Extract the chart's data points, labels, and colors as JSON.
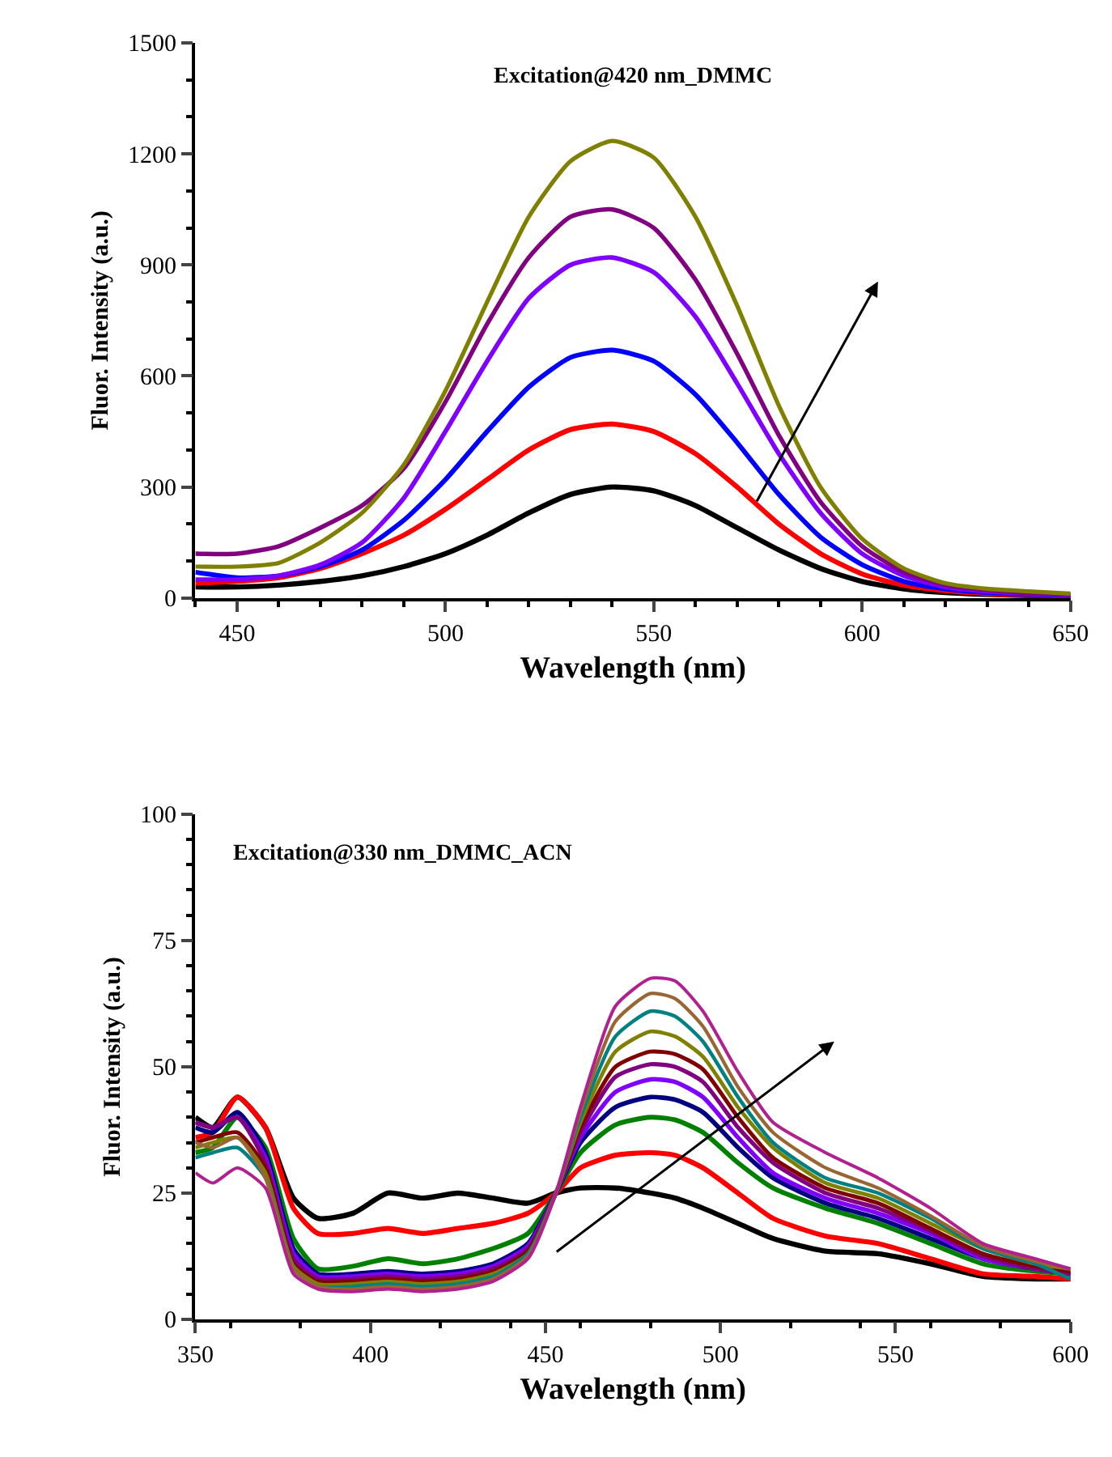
{
  "chart_data": [
    {
      "type": "line",
      "title": "Excitation@420 nm_DMMC",
      "xlabel": "Wavelength (nm)",
      "ylabel": "Fluor. Intensity (a.u.)",
      "xlim": [
        440,
        650
      ],
      "xticks": [
        450,
        500,
        550,
        600,
        650
      ],
      "ylim": [
        0,
        1500
      ],
      "yticks": [
        0,
        300,
        600,
        900,
        1200,
        1500
      ],
      "line_style": "solid",
      "marker": "none",
      "x": [
        440,
        450,
        460,
        470,
        480,
        490,
        500,
        510,
        520,
        530,
        540,
        550,
        560,
        570,
        580,
        590,
        600,
        610,
        620,
        630,
        640,
        650
      ],
      "series": [
        {
          "color": "#000000",
          "values": [
            30,
            30,
            35,
            45,
            60,
            85,
            120,
            170,
            230,
            280,
            300,
            290,
            250,
            190,
            130,
            80,
            45,
            25,
            15,
            10,
            7,
            5
          ]
        },
        {
          "color": "#ff0000",
          "values": [
            40,
            45,
            55,
            80,
            120,
            170,
            240,
            320,
            400,
            455,
            470,
            450,
            390,
            300,
            200,
            120,
            65,
            35,
            20,
            12,
            8,
            6
          ]
        },
        {
          "color": "#0000ff",
          "values": [
            70,
            55,
            60,
            85,
            130,
            210,
            320,
            450,
            570,
            650,
            670,
            640,
            550,
            420,
            280,
            165,
            90,
            45,
            25,
            15,
            10,
            7
          ]
        },
        {
          "color": "#8000ff",
          "values": [
            50,
            50,
            60,
            90,
            150,
            270,
            450,
            640,
            810,
            900,
            920,
            880,
            760,
            580,
            390,
            230,
            120,
            60,
            30,
            18,
            12,
            8
          ]
        },
        {
          "color": "#800080",
          "values": [
            120,
            120,
            140,
            190,
            250,
            350,
            530,
            740,
            920,
            1030,
            1050,
            1000,
            860,
            660,
            440,
            260,
            140,
            70,
            35,
            22,
            14,
            10
          ]
        },
        {
          "color": "#808000",
          "values": [
            85,
            85,
            95,
            150,
            230,
            360,
            560,
            800,
            1030,
            1180,
            1235,
            1190,
            1030,
            790,
            520,
            300,
            160,
            80,
            40,
            25,
            18,
            12
          ]
        }
      ]
    },
    {
      "type": "line",
      "title": "Excitation@330 nm_DMMC_ACN",
      "xlabel": "Wavelength (nm)",
      "ylabel": "Fluor. Intensity (a.u.)",
      "xlim": [
        350,
        600
      ],
      "xticks": [
        350,
        400,
        450,
        500,
        550,
        600
      ],
      "ylim": [
        0,
        100
      ],
      "yticks": [
        0,
        25,
        50,
        75,
        100
      ],
      "line_style": "solid",
      "marker": "none",
      "x": [
        350,
        355,
        362,
        370,
        378,
        385,
        395,
        405,
        415,
        425,
        435,
        445,
        453,
        460,
        470,
        480,
        487,
        495,
        505,
        515,
        530,
        545,
        560,
        575,
        590,
        600
      ],
      "series": [
        {
          "color": "#000000",
          "values": [
            40,
            38,
            44,
            38,
            24,
            20,
            21,
            25,
            24,
            25,
            24,
            23,
            25,
            26,
            26,
            25,
            24,
            22,
            19,
            16,
            13.5,
            13,
            11,
            8.5,
            8,
            8
          ]
        },
        {
          "color": "#ff0000",
          "values": [
            36,
            37,
            44,
            38,
            22,
            17,
            17,
            18,
            17,
            18,
            19,
            21,
            25,
            30,
            32.5,
            33,
            32.5,
            30,
            25,
            20,
            16.5,
            15,
            12,
            9,
            8.5,
            8
          ]
        },
        {
          "color": "#008000",
          "values": [
            33,
            34,
            40,
            34,
            16,
            10,
            10.5,
            12,
            11,
            12,
            14,
            17,
            25,
            33,
            38.5,
            40,
            39.5,
            37,
            31,
            26,
            22,
            19,
            15,
            11,
            9.5,
            9
          ]
        },
        {
          "color": "#000080",
          "values": [
            38,
            37,
            41,
            33,
            14,
            9,
            9,
            9.5,
            9,
            9.5,
            11,
            15,
            25,
            35,
            42,
            44,
            43.5,
            41,
            34,
            28,
            23,
            20,
            16,
            12,
            10,
            9
          ]
        },
        {
          "color": "#8000ff",
          "values": [
            39,
            38,
            40,
            32,
            13,
            8.5,
            8.5,
            9,
            8.5,
            9,
            10.5,
            14.5,
            25,
            36,
            45,
            47.5,
            47,
            44,
            36,
            29,
            24,
            21,
            17,
            12,
            10,
            9
          ]
        },
        {
          "color": "#800080",
          "values": [
            39,
            38,
            40,
            31,
            12,
            8,
            8,
            8.5,
            8,
            8.5,
            10,
            14,
            25,
            37,
            48,
            50.5,
            50,
            47,
            38,
            31,
            25,
            22,
            17.5,
            12.5,
            10,
            9
          ]
        },
        {
          "color": "#800000",
          "values": [
            35,
            36,
            37,
            30,
            11,
            7.5,
            7.5,
            8,
            7.5,
            8,
            9.5,
            13.5,
            25,
            38,
            50,
            53,
            52.5,
            49.5,
            40,
            32,
            26,
            23,
            18,
            13,
            10.5,
            9.5
          ]
        },
        {
          "color": "#808000",
          "values": [
            34,
            35,
            36,
            29,
            10.5,
            7,
            7,
            7.5,
            7,
            7.5,
            9,
            13,
            25,
            39,
            53,
            57,
            56,
            52,
            42,
            34,
            27,
            24,
            19,
            14,
            11,
            10
          ]
        },
        {
          "color": "#008080",
          "values": [
            32,
            33,
            34,
            28,
            10,
            6.5,
            6.5,
            7,
            6.5,
            7,
            8.5,
            13,
            25,
            40,
            56,
            61,
            60,
            55,
            44,
            35,
            28,
            25,
            20,
            14,
            11,
            8
          ]
        },
        {
          "color": "#996633",
          "values": [
            35,
            34,
            36,
            28,
            10,
            6.5,
            6,
            6.5,
            6,
            6.5,
            8,
            12.5,
            25,
            41,
            59,
            64.5,
            63.5,
            58,
            46,
            37,
            30,
            26,
            20.5,
            14.5,
            11.5,
            10
          ]
        },
        {
          "color": "#b0208f",
          "values": [
            29,
            27,
            30,
            26,
            9,
            6,
            5.5,
            6,
            5.5,
            6,
            7.5,
            12,
            25,
            42,
            62,
            67.5,
            67,
            61,
            49,
            39,
            33,
            28,
            22,
            15,
            12,
            10
          ]
        }
      ]
    }
  ]
}
